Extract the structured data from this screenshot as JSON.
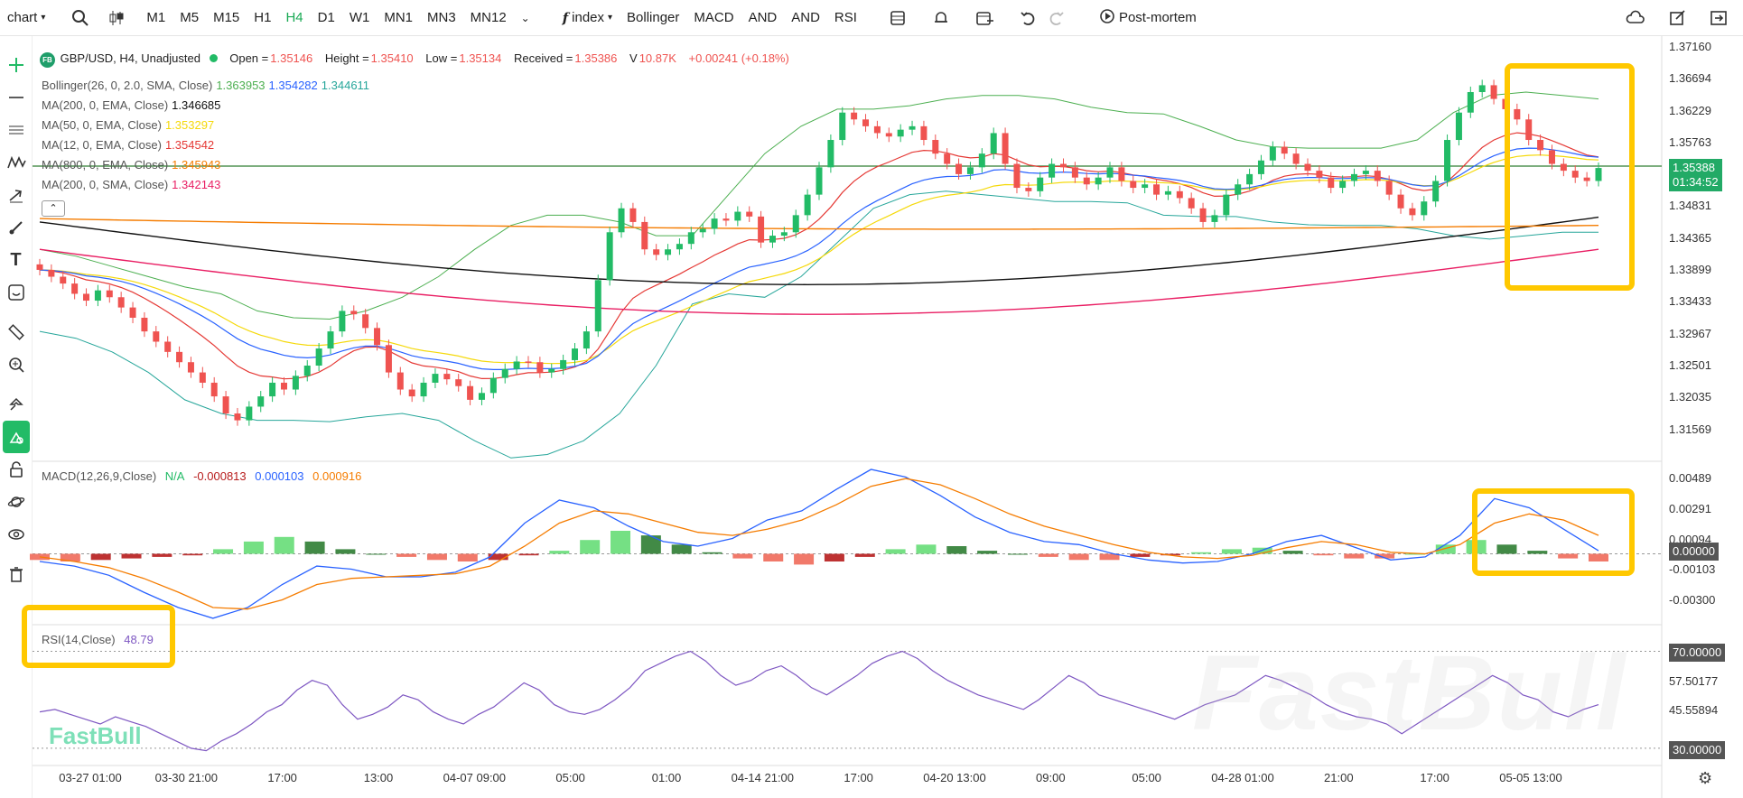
{
  "toolbar": {
    "chart_label": "chart",
    "timeframes": [
      "M1",
      "M5",
      "M15",
      "H1",
      "H4",
      "D1",
      "W1",
      "MN1",
      "MN3",
      "MN12"
    ],
    "active_timeframe": "H4",
    "index_label": "index",
    "indicators": [
      "Bollinger",
      "MACD",
      "AND",
      "AND",
      "RSI"
    ],
    "postmortem_label": "Post-mortem"
  },
  "legend": {
    "logo": "FB",
    "symbol": "GBP/USD, H4, Unadjusted",
    "open_label": "Open =",
    "open": "1.35146",
    "high_label": "Height =",
    "high": "1.35410",
    "low_label": "Low =",
    "low": "1.35134",
    "close_label": "Received =",
    "close": "1.35386",
    "volume_label": "V",
    "volume": "10.87K",
    "change": "+0.00241 (+0.18%)",
    "indicators": [
      {
        "label": "Bollinger(26, 0, 2.0, SMA, Close)",
        "values": [
          "1.363953",
          "1.354282",
          "1.344611"
        ],
        "colors": [
          "#4caf50",
          "#2962ff",
          "#26a69a"
        ]
      },
      {
        "label": "MA(200, 0, EMA, Close)",
        "values": [
          "1.346685"
        ],
        "colors": [
          "#111111"
        ]
      },
      {
        "label": "MA(50, 0, EMA, Close)",
        "values": [
          "1.353297"
        ],
        "colors": [
          "#f5d90a"
        ]
      },
      {
        "label": "MA(12, 0, EMA, Close)",
        "values": [
          "1.354542"
        ],
        "colors": [
          "#e53935"
        ]
      },
      {
        "label": "MA(800, 0, EMA, Close)",
        "values": [
          "1.345943"
        ],
        "colors": [
          "#f57c00"
        ]
      },
      {
        "label": "MA(200, 0, SMA, Close)",
        "values": [
          "1.342143"
        ],
        "colors": [
          "#e91e63"
        ]
      }
    ],
    "collapse_icon": "chevron-up-icon"
  },
  "macd_legend": {
    "label": "MACD(12,26,9,Close)",
    "na": "N/A",
    "values": [
      "-0.000813",
      "0.000103",
      "0.000916"
    ],
    "colors": [
      "#b71c1c",
      "#2962ff",
      "#f57c00"
    ]
  },
  "rsi_legend": {
    "label": "RSI(14,Close)",
    "value": "48.79"
  },
  "price_badge": {
    "price": "1.35388",
    "countdown": "01:34:52"
  },
  "macd_badge": "0.00000",
  "rsi_badges": [
    "70.00000",
    "30.00000"
  ],
  "watermark": "FastBull",
  "colors": {
    "up": "#22bb66",
    "down": "#ef5350",
    "highlight": "#ffc800"
  },
  "chart_data": {
    "type": "candlestick",
    "x_ticks": [
      "03-27 01:00",
      "03-30 21:00",
      "17:00",
      "13:00",
      "04-07 09:00",
      "05:00",
      "01:00",
      "04-14 21:00",
      "17:00",
      "04-20 13:00",
      "09:00",
      "05:00",
      "04-28 01:00",
      "21:00",
      "17:00",
      "05-05 13:00"
    ],
    "price_ticks": [
      "1.37160",
      "1.36694",
      "1.36229",
      "1.35763",
      "1.35297",
      "1.34831",
      "1.34365",
      "1.33899",
      "1.33433",
      "1.32967",
      "1.32501",
      "1.32035",
      "1.31569"
    ],
    "price_range": [
      1.3118,
      1.3716
    ],
    "macd_ticks": [
      "0.00489",
      "0.00291",
      "0.00094",
      "-0.00103",
      "-0.00300"
    ],
    "macd_range": [
      -0.0045,
      0.0055
    ],
    "rsi_ticks": [
      "57.50177",
      "45.55894"
    ],
    "rsi_range": [
      24,
      78
    ],
    "series": {
      "close": [
        1.339,
        1.338,
        1.337,
        1.3355,
        1.3345,
        1.336,
        1.335,
        1.3335,
        1.332,
        1.33,
        1.3285,
        1.327,
        1.3255,
        1.324,
        1.3225,
        1.3205,
        1.318,
        1.317,
        1.319,
        1.3205,
        1.3225,
        1.3215,
        1.3235,
        1.325,
        1.3275,
        1.33,
        1.333,
        1.3325,
        1.3305,
        1.328,
        1.324,
        1.3215,
        1.3205,
        1.3225,
        1.3238,
        1.323,
        1.322,
        1.32,
        1.321,
        1.3232,
        1.3245,
        1.3256,
        1.3255,
        1.324,
        1.3245,
        1.3258,
        1.3275,
        1.33,
        1.3375,
        1.3445,
        1.348,
        1.346,
        1.342,
        1.3412,
        1.342,
        1.3428,
        1.3445,
        1.345,
        1.3465,
        1.3462,
        1.3475,
        1.3468,
        1.343,
        1.344,
        1.3445,
        1.347,
        1.35,
        1.354,
        1.358,
        1.362,
        1.361,
        1.36,
        1.359,
        1.3585,
        1.3595,
        1.36,
        1.358,
        1.356,
        1.3545,
        1.353,
        1.354,
        1.356,
        1.359,
        1.3545,
        1.351,
        1.3505,
        1.3525,
        1.3545,
        1.354,
        1.3525,
        1.3515,
        1.3525,
        1.354,
        1.352,
        1.351,
        1.3515,
        1.35,
        1.3505,
        1.3495,
        1.348,
        1.346,
        1.347,
        1.35,
        1.3515,
        1.353,
        1.355,
        1.357,
        1.356,
        1.3545,
        1.3535,
        1.3525,
        1.351,
        1.352,
        1.353,
        1.3535,
        1.352,
        1.35,
        1.348,
        1.347,
        1.349,
        1.352,
        1.358,
        1.362,
        1.365,
        1.366,
        1.364,
        1.3625,
        1.361,
        1.358,
        1.3565,
        1.3545,
        1.3535,
        1.3525,
        1.352,
        1.3539
      ],
      "bb_upper": [
        1.342,
        1.341,
        1.3395,
        1.338,
        1.3365,
        1.3355,
        1.333,
        1.332,
        1.3318,
        1.333,
        1.335,
        1.338,
        1.342,
        1.3455,
        1.347,
        1.347,
        1.346,
        1.344,
        1.344,
        1.35,
        1.356,
        1.36,
        1.3625,
        1.3625,
        1.363,
        1.364,
        1.3645,
        1.3645,
        1.364,
        1.3628,
        1.362,
        1.3618,
        1.36,
        1.358,
        1.357,
        1.3568,
        1.3568,
        1.3568,
        1.358,
        1.362,
        1.3645,
        1.365,
        1.3645,
        1.364
      ],
      "bb_lower": [
        1.33,
        1.329,
        1.327,
        1.324,
        1.32,
        1.318,
        1.317,
        1.317,
        1.3168,
        1.3175,
        1.318,
        1.317,
        1.314,
        1.3115,
        1.312,
        1.314,
        1.318,
        1.325,
        1.334,
        1.3355,
        1.335,
        1.338,
        1.343,
        1.348,
        1.35,
        1.3505,
        1.35,
        1.3495,
        1.349,
        1.349,
        1.3488,
        1.347,
        1.3468,
        1.3468,
        1.346,
        1.3456,
        1.3455,
        1.3455,
        1.345,
        1.344,
        1.3435,
        1.344,
        1.3445,
        1.3445
      ],
      "macd_hist": [
        -0.0004,
        -0.0005,
        -0.0004,
        -0.0003,
        -0.0002,
        -0.0001,
        0.0003,
        0.0008,
        0.0011,
        0.0008,
        0.0003,
        0.0,
        -0.0002,
        -0.0004,
        -0.0005,
        -0.0004,
        -0.0001,
        0.0002,
        0.0009,
        0.0015,
        0.0012,
        0.0006,
        0.0001,
        -0.0003,
        -0.0005,
        -0.0007,
        -0.0005,
        -0.0002,
        0.0003,
        0.0006,
        0.0005,
        0.0002,
        0.0,
        -0.0002,
        -0.0004,
        -0.0004,
        -0.0002,
        -0.0001,
        0.0001,
        0.0003,
        0.0004,
        0.0002,
        -0.0001,
        -0.0003,
        -0.0003,
        0.0,
        0.0006,
        0.0009,
        0.0006,
        0.0002,
        -0.0003,
        -0.0005
      ],
      "macd_line": [
        -0.0005,
        -0.0008,
        -0.0014,
        -0.0025,
        -0.0035,
        -0.0042,
        -0.0035,
        -0.002,
        -0.0008,
        -0.001,
        -0.0015,
        -0.0015,
        -0.0012,
        -0.0002,
        0.002,
        0.0035,
        0.003,
        0.0018,
        0.0008,
        0.0005,
        0.001,
        0.0022,
        0.0028,
        0.0042,
        0.0055,
        0.005,
        0.0038,
        0.0024,
        0.0014,
        0.0008,
        0.0006,
        0.0,
        -0.0004,
        -0.0006,
        -0.0005,
        0.0,
        0.0008,
        0.0012,
        0.0004,
        -0.0004,
        -0.0002,
        0.0012,
        0.0036,
        0.003,
        0.0016,
        0.0002
      ],
      "macd_signal": [
        -0.0002,
        -0.0005,
        -0.0009,
        -0.0016,
        -0.0025,
        -0.0035,
        -0.0036,
        -0.003,
        -0.002,
        -0.0016,
        -0.0015,
        -0.0014,
        -0.0013,
        -0.0008,
        0.0005,
        0.002,
        0.0028,
        0.0026,
        0.002,
        0.0014,
        0.0012,
        0.0016,
        0.0022,
        0.0032,
        0.0044,
        0.0049,
        0.0045,
        0.0036,
        0.0026,
        0.0018,
        0.0012,
        0.0006,
        0.0001,
        -0.0002,
        -0.0003,
        -0.0001,
        0.0004,
        0.0008,
        0.0006,
        0.0001,
        0.0,
        0.0006,
        0.002,
        0.0026,
        0.0022,
        0.0012
      ],
      "rsi": [
        45,
        46,
        44,
        42,
        40,
        43,
        41,
        39,
        36,
        33,
        30,
        29,
        33,
        36,
        40,
        45,
        48,
        54,
        58,
        56,
        48,
        42,
        44,
        47,
        52,
        50,
        45,
        42,
        40,
        44,
        47,
        52,
        57,
        54,
        48,
        45,
        44,
        46,
        50,
        55,
        62,
        65,
        68,
        70,
        66,
        60,
        56,
        58,
        62,
        64,
        60,
        55,
        52,
        56,
        60,
        65,
        68,
        70,
        67,
        62,
        58,
        55,
        52,
        50,
        48,
        46,
        50,
        55,
        60,
        57,
        52,
        50,
        48,
        46,
        44,
        42,
        45,
        48,
        50,
        52,
        56,
        60,
        58,
        55,
        52,
        48,
        45,
        43,
        42,
        40,
        36,
        40,
        44,
        48,
        52,
        56,
        60,
        57,
        52,
        50,
        45,
        43,
        46,
        48
      ]
    }
  }
}
